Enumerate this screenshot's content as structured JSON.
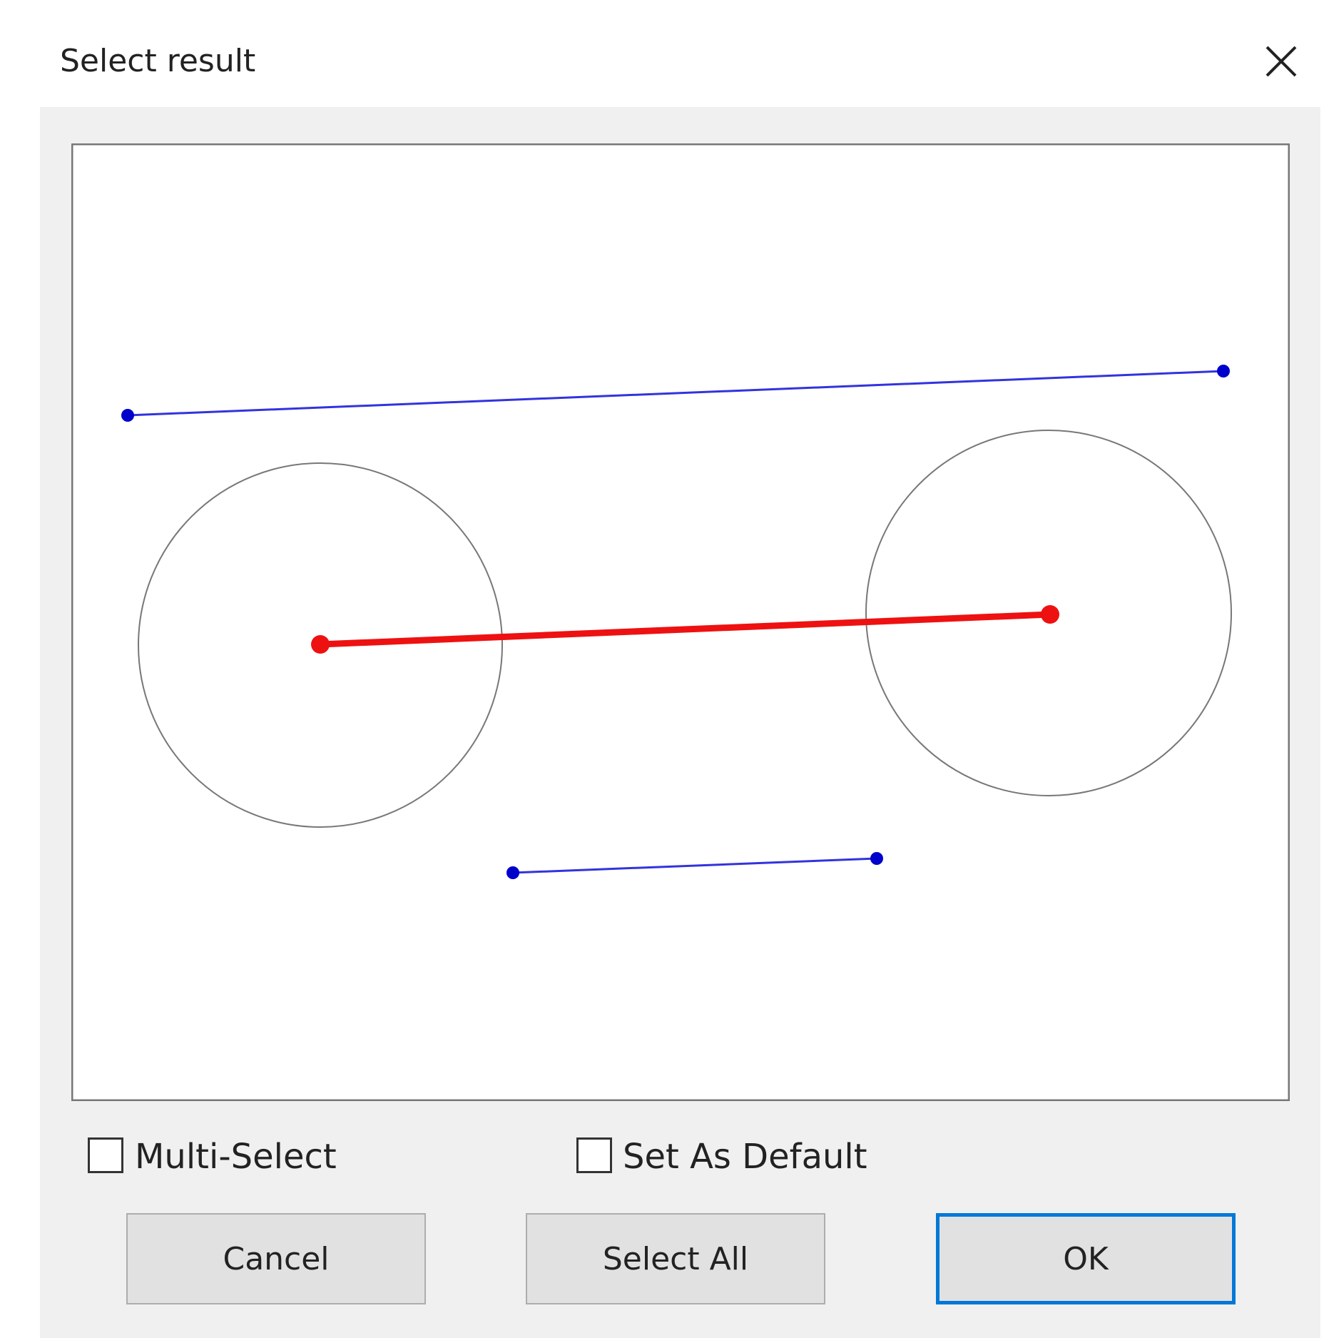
{
  "dialog": {
    "title": "Select result",
    "checkboxes": [
      {
        "label": "Multi-Select"
      },
      {
        "label": "Set As Default"
      }
    ],
    "buttons": [
      {
        "label": "Cancel"
      },
      {
        "label": "Select All"
      },
      {
        "label": "OK"
      }
    ]
  }
}
